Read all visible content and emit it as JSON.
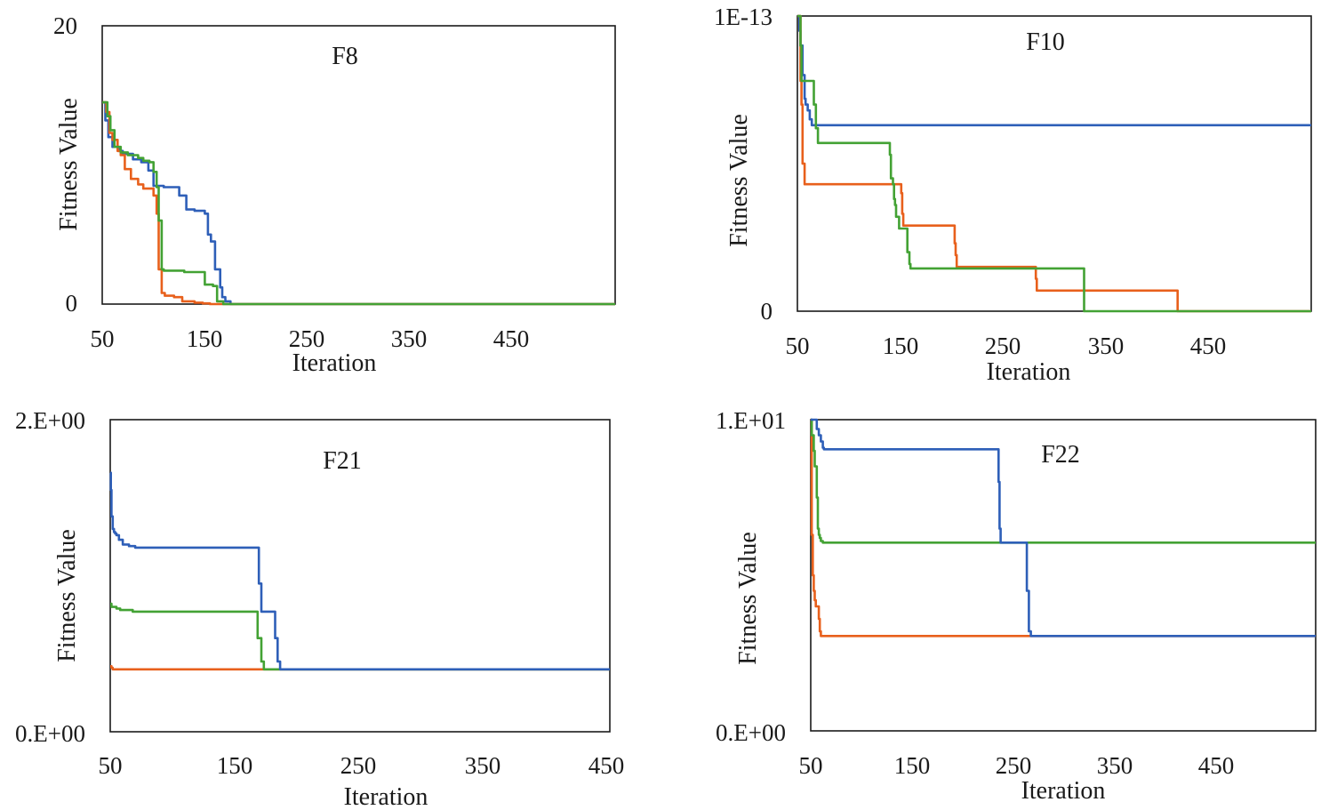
{
  "colors": {
    "series_1": "#2e5fb8",
    "series_2": "#e8601c",
    "series_3": "#43a234"
  },
  "chart_data": [
    {
      "type": "line",
      "title": "F8",
      "xlabel": "Iteration",
      "ylabel": "Fitness Value",
      "xlim": [
        50,
        550
      ],
      "ylim": [
        0,
        20
      ],
      "xticks": [
        "50",
        "150",
        "250",
        "350",
        "450"
      ],
      "yticks": [
        {
          "value": 0,
          "label": "0"
        },
        {
          "value": 20,
          "label": "20"
        }
      ],
      "series": [
        {
          "name": "series 1",
          "x": [
            50,
            53,
            56,
            60,
            66,
            70,
            80,
            88,
            95,
            100,
            110,
            125,
            132,
            140,
            150,
            153,
            156,
            160,
            165,
            167,
            170,
            175,
            550
          ],
          "y": [
            14.5,
            13.2,
            12,
            11.3,
            11,
            10.8,
            10.4,
            10.2,
            9.6,
            8.5,
            8.4,
            7.8,
            6.8,
            6.7,
            6.5,
            5,
            4.5,
            2.5,
            1.2,
            0.5,
            0.2,
            0,
            0
          ]
        },
        {
          "name": "series 2",
          "x": [
            50,
            54,
            57,
            60,
            65,
            68,
            72,
            78,
            85,
            90,
            100,
            103,
            105,
            108,
            111,
            120,
            128,
            140,
            148,
            155,
            550
          ],
          "y": [
            14.5,
            13.8,
            12.3,
            11.8,
            11,
            10.7,
            9.7,
            9,
            8.6,
            8.3,
            7.8,
            6.5,
            2.5,
            0.8,
            0.6,
            0.5,
            0.2,
            0.1,
            0.05,
            0,
            0
          ]
        },
        {
          "name": "series 3",
          "x": [
            50,
            55,
            58,
            62,
            68,
            75,
            85,
            90,
            96,
            100,
            103,
            105,
            108,
            110,
            120,
            130,
            140,
            150,
            158,
            162,
            168,
            550
          ],
          "y": [
            14.5,
            13.5,
            12.5,
            11.3,
            10.9,
            10.7,
            10.5,
            10.3,
            10.2,
            9.5,
            8.4,
            6,
            2.5,
            2.4,
            2.4,
            2.3,
            2.3,
            1.4,
            1.3,
            0.2,
            0,
            0
          ]
        }
      ]
    },
    {
      "type": "line",
      "title": "F10",
      "xlabel": "Iteration",
      "ylabel": "Fitness Value",
      "xlim": [
        50,
        550
      ],
      "ylim": [
        0,
        1e-13
      ],
      "xticks": [
        "50",
        "150",
        "250",
        "350",
        "450"
      ],
      "yticks": [
        {
          "value": 0,
          "label": "0"
        },
        {
          "value": 1e-13,
          "label": "1E-13"
        }
      ],
      "series": [
        {
          "name": "series 1",
          "x": [
            50,
            52,
            53,
            55,
            57,
            58,
            60,
            62,
            64,
            66,
            550
          ],
          "y": [
            1e-13,
            9.5e-14,
            9e-14,
            8e-14,
            7.2e-14,
            7e-14,
            6.8e-14,
            6.5e-14,
            6.3e-14,
            6.3e-14,
            6.3e-14
          ]
        },
        {
          "name": "series 2",
          "x": [
            50,
            53,
            54,
            55,
            57,
            147,
            151,
            152,
            153,
            200,
            203,
            204,
            205,
            280,
            282,
            283,
            418,
            420,
            550
          ],
          "y": [
            1e-13,
            7.8e-14,
            7e-14,
            5e-14,
            4.3e-14,
            4.3e-14,
            4e-14,
            3.3e-14,
            2.9e-14,
            2.9e-14,
            2.3e-14,
            1.9e-14,
            1.5e-14,
            1.5e-14,
            1.1e-14,
            7e-15,
            7e-15,
            0,
            0
          ]
        },
        {
          "name": "series 3",
          "x": [
            50,
            53,
            54,
            58,
            64,
            66,
            68,
            70,
            138,
            140,
            141,
            143,
            144,
            145,
            146,
            149,
            155,
            157,
            159,
            160,
            161,
            327,
            329,
            550
          ],
          "y": [
            1e-13,
            9e-14,
            7.8e-14,
            7.8e-14,
            7.8e-14,
            7e-14,
            6.2e-14,
            5.7e-14,
            5.7e-14,
            5.3e-14,
            4.5e-14,
            4.3e-14,
            3.8e-14,
            3.6e-14,
            3.2e-14,
            2.8e-14,
            2.8e-14,
            2e-14,
            1.6e-14,
            1.45e-14,
            1.45e-14,
            1.45e-14,
            0,
            0
          ]
        }
      ]
    },
    {
      "type": "line",
      "title": "F21",
      "xlabel": "Iteration",
      "ylabel": "Fitness Value",
      "xlim": [
        50,
        450
      ],
      "ylim": [
        0,
        2
      ],
      "xticks": [
        "50",
        "150",
        "250",
        "350",
        "450"
      ],
      "yticks": [
        {
          "value": 0,
          "label": "0.E+00"
        },
        {
          "value": 2,
          "label": "2.E+00"
        }
      ],
      "series": [
        {
          "name": "series 2",
          "x": [
            50,
            51,
            52,
            55,
            60,
            450
          ],
          "y": [
            0.42,
            0.41,
            0.4,
            0.4,
            0.4,
            0.4
          ]
        },
        {
          "name": "series 3",
          "x": [
            50,
            51,
            53,
            55,
            58,
            62,
            68,
            80,
            110,
            140,
            166,
            168,
            171,
            173,
            450
          ],
          "y": [
            0.82,
            0.8,
            0.8,
            0.79,
            0.78,
            0.78,
            0.77,
            0.77,
            0.77,
            0.77,
            0.77,
            0.6,
            0.45,
            0.4,
            0.4
          ]
        },
        {
          "name": "series 1",
          "x": [
            50,
            50.5,
            51,
            52,
            53,
            54,
            55,
            57,
            60,
            65,
            70,
            80,
            100,
            140,
            167,
            169,
            171,
            180,
            182,
            184,
            186,
            450
          ],
          "y": [
            1.66,
            1.55,
            1.38,
            1.3,
            1.28,
            1.27,
            1.26,
            1.23,
            1.2,
            1.19,
            1.18,
            1.18,
            1.18,
            1.18,
            1.18,
            0.95,
            0.77,
            0.77,
            0.6,
            0.45,
            0.4,
            0.4
          ]
        }
      ]
    },
    {
      "type": "line",
      "title": "F22",
      "xlabel": "Iteration",
      "ylabel": "Fitness Value",
      "xlim": [
        50,
        550
      ],
      "ylim": [
        0,
        10
      ],
      "xticks": [
        "50",
        "150",
        "250",
        "350",
        "450"
      ],
      "yticks": [
        {
          "value": 0,
          "label": "0.E+00"
        },
        {
          "value": 10,
          "label": "1.E+01"
        }
      ],
      "series": [
        {
          "name": "series 2",
          "x": [
            50,
            51,
            52,
            53,
            54,
            55,
            57,
            58,
            59,
            60,
            62,
            550
          ],
          "y": [
            10,
            6.3,
            5,
            4.5,
            4.2,
            4,
            4,
            3.6,
            3.2,
            3.05,
            3.05,
            3.05
          ]
        },
        {
          "name": "series 3",
          "x": [
            50,
            51,
            53,
            54,
            56,
            57,
            58,
            59,
            60,
            62,
            68,
            237,
            240,
            550
          ],
          "y": [
            10,
            9.5,
            9,
            8.5,
            7.5,
            6.5,
            6.3,
            6.2,
            6.1,
            6.05,
            6.05,
            6.05,
            6.05,
            6.05
          ]
        },
        {
          "name": "series 1",
          "x": [
            50,
            55,
            56,
            58,
            60,
            62,
            63,
            65,
            70,
            80,
            100,
            230,
            235,
            236,
            237,
            238,
            262,
            264,
            266,
            268,
            550
          ],
          "y": [
            10,
            10,
            9.7,
            9.5,
            9.3,
            9.1,
            9.05,
            9.05,
            9.05,
            9.05,
            9.05,
            9.05,
            9.05,
            8,
            6.5,
            6.05,
            6.05,
            4.5,
            3.2,
            3.05,
            3.05
          ]
        }
      ]
    }
  ]
}
